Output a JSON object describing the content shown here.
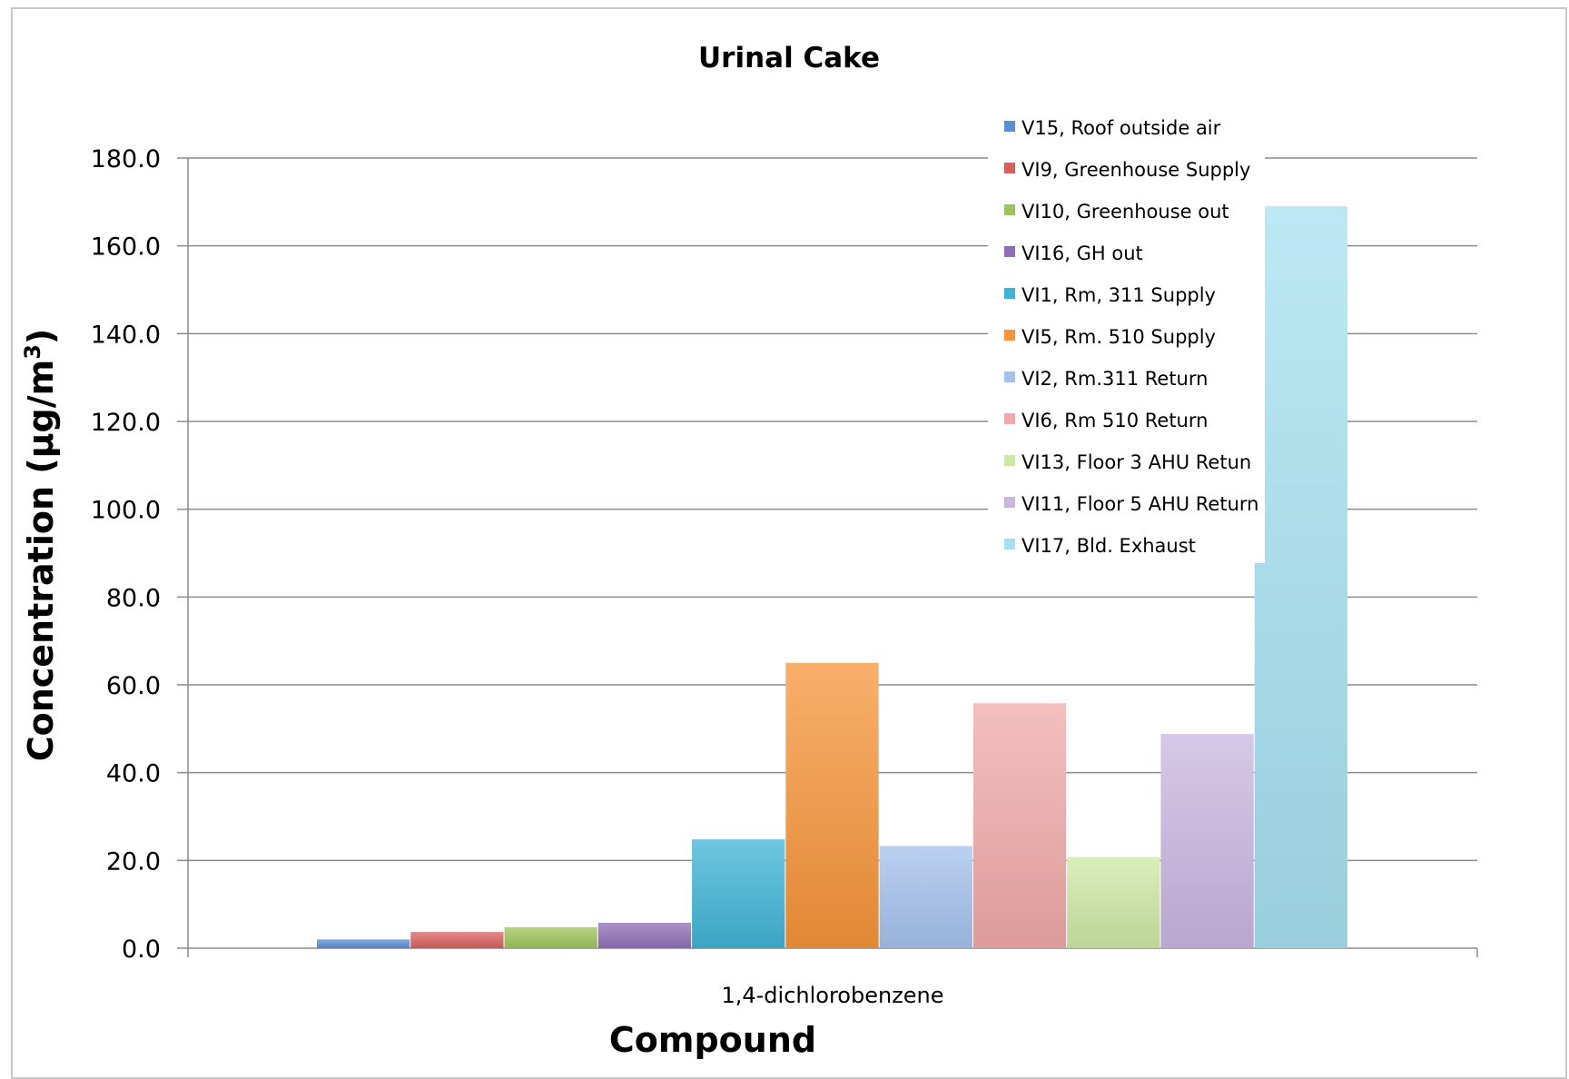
{
  "chart_data": {
    "type": "bar",
    "title": "Urinal Cake",
    "xlabel": "Compound",
    "ylabel": "Concentration (µg/m",
    "ylabel_superscript": "3",
    "ylabel_suffix": ")",
    "categories": [
      "1,4-dichlorobenzene"
    ],
    "ylim": [
      0,
      180
    ],
    "yticks": [
      "0.0",
      "20.0",
      "40.0",
      "60.0",
      "80.0",
      "100.0",
      "120.0",
      "140.0",
      "160.0",
      "180.0"
    ],
    "grid": true,
    "legend_position": "top-right",
    "series": [
      {
        "name": "V15, Roof outside air",
        "values": [
          2.0
        ],
        "color": "#5b8ed6"
      },
      {
        "name": "VI9, Greenhouse Supply",
        "values": [
          3.7
        ],
        "color": "#d9605d"
      },
      {
        "name": "VI10, Greenhouse out",
        "values": [
          4.8
        ],
        "color": "#9dc45a"
      },
      {
        "name": "VI16, GH out",
        "values": [
          5.8
        ],
        "color": "#8e6fb5"
      },
      {
        "name": "VI1, Rm, 311 Supply",
        "values": [
          24.8
        ],
        "color": "#3fb3d4"
      },
      {
        "name": "VI5, Rm. 510 Supply",
        "values": [
          65.0
        ],
        "color": "#f5943a"
      },
      {
        "name": "VI2, Rm.311 Return",
        "values": [
          23.3
        ],
        "color": "#a4c0ec"
      },
      {
        "name": "VI6, Rm 510 Return",
        "values": [
          55.8
        ],
        "color": "#f0a9a8"
      },
      {
        "name": "VI13, Floor 3 AHU Retun",
        "values": [
          20.8
        ],
        "color": "#cde8a4"
      },
      {
        "name": "VI11, Floor 5 AHU Return",
        "values": [
          48.8
        ],
        "color": "#c8b5e0"
      },
      {
        "name": "VI17, Bld. Exhaust",
        "values": [
          169.0
        ],
        "color": "#a6e0f0"
      }
    ]
  }
}
